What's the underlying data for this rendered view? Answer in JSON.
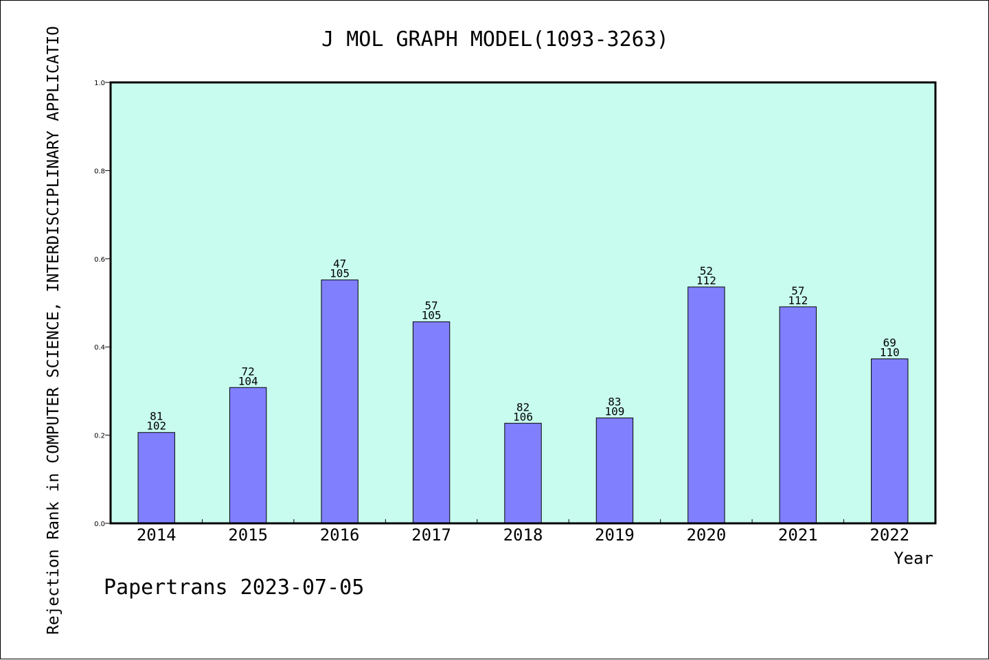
{
  "chart_data": {
    "type": "bar",
    "title": "J MOL GRAPH MODEL(1093-3263)",
    "xlabel": "Year",
    "ylabel": "Rejection Rank in COMPUTER SCIENCE, INTERDISCIPLINARY APPLICATIO",
    "ylim": [
      0,
      1.0
    ],
    "yticks": [
      "0.0",
      "0.2",
      "0.4",
      "0.6",
      "0.8",
      "1.0"
    ],
    "grid": false,
    "categories": [
      "2014",
      "2015",
      "2016",
      "2017",
      "2018",
      "2019",
      "2020",
      "2021",
      "2022"
    ],
    "values": [
      0.206,
      0.308,
      0.552,
      0.457,
      0.227,
      0.239,
      0.536,
      0.491,
      0.373
    ],
    "ranks": [
      "81",
      "72",
      "47",
      "57",
      "82",
      "83",
      "52",
      "57",
      "69"
    ],
    "totals": [
      "102",
      "104",
      "105",
      "105",
      "106",
      "109",
      "112",
      "112",
      "110"
    ],
    "colors": {
      "plot_bg": "#c8fcee",
      "bar_fill": "#8080ff",
      "bar_stroke": "#000000"
    }
  },
  "footer": "Papertrans 2023-07-05"
}
